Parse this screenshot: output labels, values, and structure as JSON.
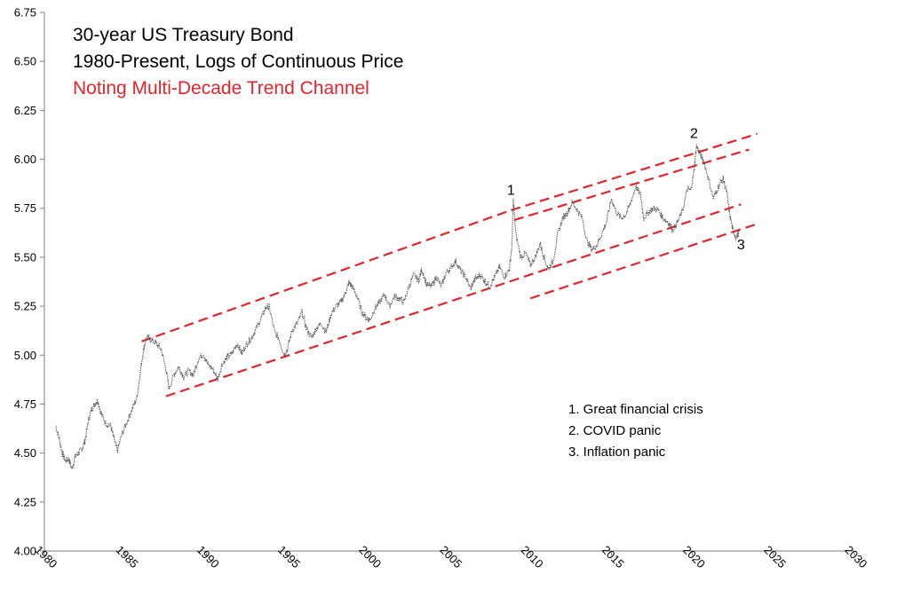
{
  "chart_data": {
    "type": "line",
    "title_lines": [
      {
        "text": "30-year US Treasury Bond",
        "color": "#000000"
      },
      {
        "text": "1980-Present, Logs of Continuous Price",
        "color": "#000000"
      },
      {
        "text": "Noting Multi-Decade Trend Channel",
        "color": "#e3252b"
      }
    ],
    "xlabel": "",
    "ylabel": "",
    "xlim": [
      1980,
      2030
    ],
    "ylim": [
      4.0,
      6.75
    ],
    "x_ticks": [
      "1980",
      "1985",
      "1990",
      "1995",
      "2000",
      "2005",
      "2010",
      "2015",
      "2020",
      "2025",
      "2030"
    ],
    "y_ticks": [
      "4.00",
      "4.25",
      "4.50",
      "4.75",
      "5.00",
      "5.25",
      "5.50",
      "5.75",
      "6.00",
      "6.25",
      "6.50",
      "6.75"
    ],
    "grid": false,
    "series": [
      {
        "color": "#555555",
        "points": [
          [
            1980.7,
            4.64
          ],
          [
            1980.9,
            4.58
          ],
          [
            1981.1,
            4.5
          ],
          [
            1981.3,
            4.46
          ],
          [
            1981.5,
            4.47
          ],
          [
            1981.7,
            4.42
          ],
          [
            1981.9,
            4.48
          ],
          [
            1982.1,
            4.5
          ],
          [
            1982.3,
            4.52
          ],
          [
            1982.5,
            4.56
          ],
          [
            1982.7,
            4.66
          ],
          [
            1982.9,
            4.72
          ],
          [
            1983.1,
            4.75
          ],
          [
            1983.3,
            4.77
          ],
          [
            1983.5,
            4.7
          ],
          [
            1983.8,
            4.65
          ],
          [
            1984.1,
            4.64
          ],
          [
            1984.3,
            4.57
          ],
          [
            1984.5,
            4.51
          ],
          [
            1984.8,
            4.6
          ],
          [
            1985.1,
            4.66
          ],
          [
            1985.4,
            4.72
          ],
          [
            1985.7,
            4.78
          ],
          [
            1985.9,
            4.9
          ],
          [
            1986.1,
            5.02
          ],
          [
            1986.3,
            5.09
          ],
          [
            1986.6,
            5.08
          ],
          [
            1986.9,
            5.06
          ],
          [
            1987.2,
            5.03
          ],
          [
            1987.5,
            4.93
          ],
          [
            1987.7,
            4.83
          ],
          [
            1988.0,
            4.9
          ],
          [
            1988.3,
            4.94
          ],
          [
            1988.6,
            4.89
          ],
          [
            1988.9,
            4.92
          ],
          [
            1989.2,
            4.9
          ],
          [
            1989.5,
            4.98
          ],
          [
            1989.8,
            5.01
          ],
          [
            1990.1,
            4.95
          ],
          [
            1990.4,
            4.93
          ],
          [
            1990.7,
            4.88
          ],
          [
            1991.0,
            4.96
          ],
          [
            1991.3,
            4.99
          ],
          [
            1991.6,
            5.01
          ],
          [
            1991.9,
            5.06
          ],
          [
            1992.2,
            5.01
          ],
          [
            1992.5,
            5.06
          ],
          [
            1992.8,
            5.09
          ],
          [
            1993.1,
            5.14
          ],
          [
            1993.4,
            5.19
          ],
          [
            1993.7,
            5.25
          ],
          [
            1993.9,
            5.24
          ],
          [
            1994.2,
            5.12
          ],
          [
            1994.5,
            5.08
          ],
          [
            1994.8,
            5.0
          ],
          [
            1995.0,
            5.03
          ],
          [
            1995.3,
            5.13
          ],
          [
            1995.6,
            5.16
          ],
          [
            1995.9,
            5.22
          ],
          [
            1996.2,
            5.13
          ],
          [
            1996.5,
            5.09
          ],
          [
            1996.8,
            5.14
          ],
          [
            1997.1,
            5.16
          ],
          [
            1997.4,
            5.12
          ],
          [
            1997.7,
            5.21
          ],
          [
            1998.0,
            5.25
          ],
          [
            1998.3,
            5.27
          ],
          [
            1998.6,
            5.32
          ],
          [
            1998.8,
            5.37
          ],
          [
            1999.0,
            5.35
          ],
          [
            1999.3,
            5.3
          ],
          [
            1999.6,
            5.22
          ],
          [
            1999.9,
            5.19
          ],
          [
            2000.1,
            5.18
          ],
          [
            2000.4,
            5.24
          ],
          [
            2000.7,
            5.27
          ],
          [
            2001.0,
            5.31
          ],
          [
            2001.3,
            5.25
          ],
          [
            2001.6,
            5.3
          ],
          [
            2001.9,
            5.29
          ],
          [
            2002.2,
            5.27
          ],
          [
            2002.5,
            5.35
          ],
          [
            2002.8,
            5.41
          ],
          [
            2003.1,
            5.38
          ],
          [
            2003.3,
            5.44
          ],
          [
            2003.6,
            5.36
          ],
          [
            2003.9,
            5.35
          ],
          [
            2004.2,
            5.4
          ],
          [
            2004.5,
            5.35
          ],
          [
            2004.8,
            5.42
          ],
          [
            2005.1,
            5.45
          ],
          [
            2005.4,
            5.48
          ],
          [
            2005.7,
            5.43
          ],
          [
            2006.0,
            5.4
          ],
          [
            2006.3,
            5.34
          ],
          [
            2006.6,
            5.39
          ],
          [
            2006.9,
            5.41
          ],
          [
            2007.2,
            5.38
          ],
          [
            2007.5,
            5.35
          ],
          [
            2007.8,
            5.4
          ],
          [
            2008.1,
            5.45
          ],
          [
            2008.4,
            5.4
          ],
          [
            2008.7,
            5.44
          ],
          [
            2008.85,
            5.55
          ],
          [
            2008.95,
            5.79
          ],
          [
            2009.1,
            5.62
          ],
          [
            2009.4,
            5.5
          ],
          [
            2009.7,
            5.52
          ],
          [
            2010.0,
            5.46
          ],
          [
            2010.3,
            5.5
          ],
          [
            2010.6,
            5.57
          ],
          [
            2010.8,
            5.51
          ],
          [
            2011.1,
            5.44
          ],
          [
            2011.4,
            5.48
          ],
          [
            2011.7,
            5.62
          ],
          [
            2012.0,
            5.7
          ],
          [
            2012.3,
            5.73
          ],
          [
            2012.6,
            5.78
          ],
          [
            2012.9,
            5.74
          ],
          [
            2013.2,
            5.7
          ],
          [
            2013.5,
            5.58
          ],
          [
            2013.8,
            5.54
          ],
          [
            2014.1,
            5.56
          ],
          [
            2014.4,
            5.62
          ],
          [
            2014.7,
            5.68
          ],
          [
            2015.0,
            5.8
          ],
          [
            2015.3,
            5.73
          ],
          [
            2015.6,
            5.7
          ],
          [
            2015.9,
            5.72
          ],
          [
            2016.2,
            5.78
          ],
          [
            2016.5,
            5.86
          ],
          [
            2016.8,
            5.82
          ],
          [
            2017.0,
            5.7
          ],
          [
            2017.3,
            5.73
          ],
          [
            2017.6,
            5.75
          ],
          [
            2017.9,
            5.74
          ],
          [
            2018.2,
            5.7
          ],
          [
            2018.5,
            5.68
          ],
          [
            2018.8,
            5.64
          ],
          [
            2019.1,
            5.68
          ],
          [
            2019.4,
            5.74
          ],
          [
            2019.7,
            5.85
          ],
          [
            2019.9,
            5.84
          ],
          [
            2020.1,
            5.94
          ],
          [
            2020.25,
            6.07
          ],
          [
            2020.45,
            6.03
          ],
          [
            2020.7,
            5.99
          ],
          [
            2021.0,
            5.9
          ],
          [
            2021.3,
            5.8
          ],
          [
            2021.6,
            5.86
          ],
          [
            2021.9,
            5.9
          ],
          [
            2022.1,
            5.84
          ],
          [
            2022.3,
            5.72
          ],
          [
            2022.5,
            5.64
          ],
          [
            2022.7,
            5.6
          ],
          [
            2022.9,
            5.63
          ]
        ]
      }
    ],
    "trend_lines": {
      "color": "#e3252b",
      "lines": [
        [
          [
            1986.0,
            5.07
          ],
          [
            2008.8,
            5.74
          ]
        ],
        [
          [
            1987.5,
            4.79
          ],
          [
            2023.0,
            5.77
          ]
        ],
        [
          [
            2008.8,
            5.74
          ],
          [
            2024.0,
            6.13
          ]
        ],
        [
          [
            2009.0,
            5.69
          ],
          [
            2023.5,
            6.05
          ]
        ],
        [
          [
            2010.0,
            5.29
          ],
          [
            2024.0,
            5.67
          ]
        ]
      ]
    },
    "annotations": [
      {
        "label": "1",
        "x": 2008.8,
        "y": 5.82
      },
      {
        "label": "2",
        "x": 2020.1,
        "y": 6.11
      },
      {
        "label": "3",
        "x": 2023.0,
        "y": 5.54
      }
    ],
    "legend_items": [
      "1.  Great financial crisis",
      "2.  COVID panic",
      "3.  Inflation panic"
    ]
  }
}
